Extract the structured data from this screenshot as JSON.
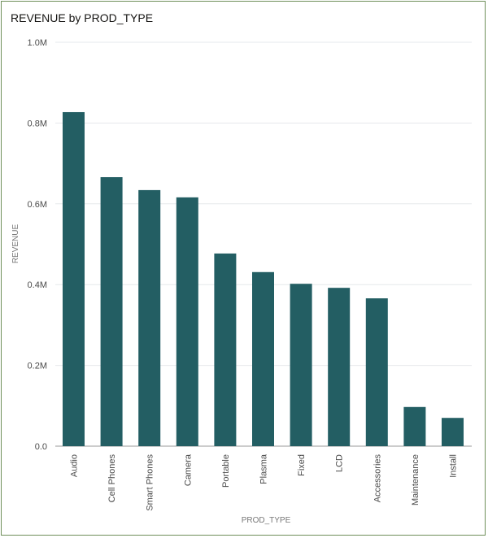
{
  "chart_data": {
    "type": "bar",
    "title": "REVENUE by PROD_TYPE",
    "xlabel": "PROD_TYPE",
    "ylabel": "REVENUE",
    "ylim": [
      0,
      1000000
    ],
    "yticks": [
      0,
      200000,
      400000,
      600000,
      800000,
      1000000
    ],
    "ytick_labels": [
      "0.0",
      "0.2M",
      "0.4M",
      "0.6M",
      "0.8M",
      "1.0M"
    ],
    "grid": true,
    "categories": [
      "Audio",
      "Cell Phones",
      "Smart Phones",
      "Camera",
      "Portable",
      "Plasma",
      "Fixed",
      "LCD",
      "Accessories",
      "Maintenance",
      "Install"
    ],
    "values": [
      827000,
      666000,
      634000,
      616000,
      477000,
      431000,
      402000,
      392000,
      366000,
      97000,
      70000
    ],
    "bar_color": "#235e63"
  }
}
